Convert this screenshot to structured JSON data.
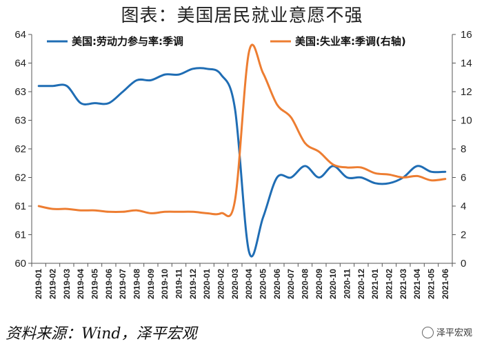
{
  "title": "图表：美国居民就业意愿不强",
  "source": "资料来源：Wind，泽平宏观",
  "brand": "泽平宏观",
  "chart_data": {
    "type": "line",
    "categories": [
      "2019-01",
      "2019-02",
      "2019-03",
      "2019-04",
      "2019-05",
      "2019-06",
      "2019-07",
      "2019-08",
      "2019-09",
      "2019-10",
      "2019-11",
      "2019-12",
      "2020-01",
      "2020-02",
      "2020-03",
      "2020-04",
      "2020-05",
      "2020-06",
      "2020-07",
      "2020-08",
      "2020-09",
      "2020-10",
      "2020-11",
      "2020-12",
      "2021-01",
      "2021-02",
      "2021-03",
      "2021-04",
      "2021-05",
      "2021-06"
    ],
    "left_axis": {
      "ticks": [
        "60",
        "61",
        "61",
        "62",
        "62",
        "63",
        "63",
        "64",
        "64"
      ],
      "ylim": [
        60,
        64
      ]
    },
    "right_axis": {
      "ticks": [
        "0",
        "2",
        "4",
        "6",
        "8",
        "10",
        "12",
        "14",
        "16"
      ],
      "ylim": [
        0,
        16
      ]
    },
    "series": [
      {
        "name": "美国:劳动力参与率:季调",
        "axis": "left",
        "color": "#1f6db4",
        "values": [
          63.1,
          63.1,
          63.1,
          62.8,
          62.8,
          62.8,
          63.0,
          63.2,
          63.2,
          63.3,
          63.3,
          63.4,
          63.4,
          63.3,
          62.7,
          60.2,
          60.8,
          61.5,
          61.5,
          61.7,
          61.5,
          61.7,
          61.5,
          61.5,
          61.4,
          61.4,
          61.5,
          61.7,
          61.6,
          61.6
        ]
      },
      {
        "name": "美国:失业率:季调(右轴)",
        "axis": "right",
        "color": "#ed7d31",
        "values": [
          4.0,
          3.8,
          3.8,
          3.7,
          3.7,
          3.6,
          3.6,
          3.7,
          3.5,
          3.6,
          3.6,
          3.6,
          3.5,
          3.5,
          4.4,
          14.8,
          13.3,
          11.1,
          10.2,
          8.4,
          7.8,
          6.9,
          6.7,
          6.7,
          6.3,
          6.2,
          6.0,
          6.1,
          5.8,
          5.9
        ]
      }
    ],
    "legend_placement": "top",
    "grid": false
  }
}
